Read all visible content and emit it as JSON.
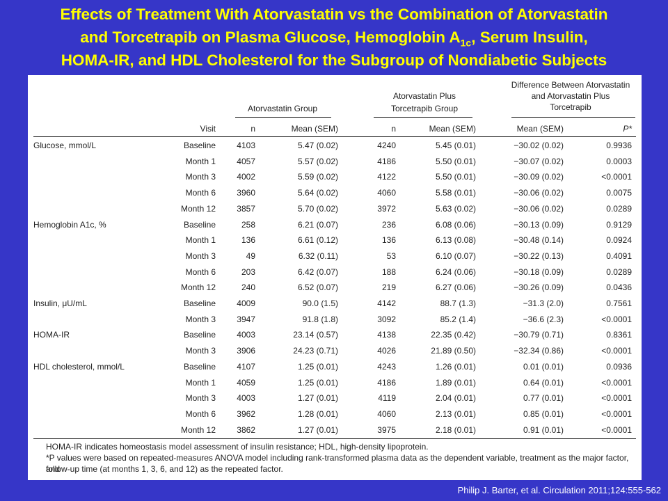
{
  "title": {
    "line1": "Effects of Treatment With Atorvastatin vs the Combination of Atorvastatin",
    "line2_pre": "and Torcetrapib on Plasma Glucose, Hemoglobin A",
    "line2_sub": "1c",
    "line2_post": ", Serum Insulin,",
    "line3": "HOMA-IR, and HDL Cholesterol for the Subgroup of Nondiabetic Subjects"
  },
  "table": {
    "group_headers": {
      "atorvastatin": "Atorvastatin Group",
      "combo_line1": "Atorvastatin Plus",
      "combo_line2": "Torcetrapib Group",
      "diff_line1": "Difference Between Atorvastatin",
      "diff_line2": "and Atorvastatin Plus",
      "diff_line3": "Torcetrapib"
    },
    "columns": {
      "visit": "Visit",
      "n1": "n",
      "mean1": "Mean (SEM)",
      "n2": "n",
      "mean2": "Mean (SEM)",
      "mean_diff": "Mean (SEM)",
      "p": "P*"
    },
    "rows": [
      {
        "label": "Glucose, mmol/L",
        "visit": "Baseline",
        "n1": "4103",
        "m1": "5.47 (0.02)",
        "n2": "4240",
        "m2": "5.45 (0.01)",
        "md": "−30.02 (0.02)",
        "p": "0.9936"
      },
      {
        "label": "",
        "visit": "Month 1",
        "n1": "4057",
        "m1": "5.57 (0.02)",
        "n2": "4186",
        "m2": "5.50 (0.01)",
        "md": "−30.07 (0.02)",
        "p": "0.0003"
      },
      {
        "label": "",
        "visit": "Month 3",
        "n1": "4002",
        "m1": "5.59 (0.02)",
        "n2": "4122",
        "m2": "5.50 (0.01)",
        "md": "−30.09 (0.02)",
        "p": "<0.0001"
      },
      {
        "label": "",
        "visit": "Month 6",
        "n1": "3960",
        "m1": "5.64 (0.02)",
        "n2": "4060",
        "m2": "5.58 (0.01)",
        "md": "−30.06 (0.02)",
        "p": "0.0075"
      },
      {
        "label": "",
        "visit": "Month 12",
        "n1": "3857",
        "m1": "5.70 (0.02)",
        "n2": "3972",
        "m2": "5.63 (0.02)",
        "md": "−30.06 (0.02)",
        "p": "0.0289"
      },
      {
        "label": "Hemoglobin A1c, %",
        "visit": "Baseline",
        "n1": "258",
        "m1": "6.21 (0.07)",
        "n2": "236",
        "m2": "6.08 (0.06)",
        "md": "−30.13 (0.09)",
        "p": "0.9129"
      },
      {
        "label": "",
        "visit": "Month 1",
        "n1": "136",
        "m1": "6.61 (0.12)",
        "n2": "136",
        "m2": "6.13 (0.08)",
        "md": "−30.48 (0.14)",
        "p": "0.0924"
      },
      {
        "label": "",
        "visit": "Month 3",
        "n1": "49",
        "m1": "6.32 (0.11)",
        "n2": "53",
        "m2": "6.10 (0.07)",
        "md": "−30.22 (0.13)",
        "p": "0.4091"
      },
      {
        "label": "",
        "visit": "Month 6",
        "n1": "203",
        "m1": "6.42 (0.07)",
        "n2": "188",
        "m2": "6.24 (0.06)",
        "md": "−30.18 (0.09)",
        "p": "0.0289"
      },
      {
        "label": "",
        "visit": "Month 12",
        "n1": "240",
        "m1": "6.52 (0.07)",
        "n2": "219",
        "m2": "6.27 (0.06)",
        "md": "−30.26 (0.09)",
        "p": "0.0436"
      },
      {
        "label": "Insulin, μU/mL",
        "visit": "Baseline",
        "n1": "4009",
        "m1": "90.0 (1.5)",
        "n2": "4142",
        "m2": "88.7 (1.3)",
        "md": "−31.3 (2.0)",
        "p": "0.7561"
      },
      {
        "label": "",
        "visit": "Month 3",
        "n1": "3947",
        "m1": "91.8 (1.8)",
        "n2": "3092",
        "m2": "85.2 (1.4)",
        "md": "−36.6 (2.3)",
        "p": "<0.0001"
      },
      {
        "label": "HOMA-IR",
        "visit": "Baseline",
        "n1": "4003",
        "m1": "23.14 (0.57)",
        "n2": "4138",
        "m2": "22.35 (0.42)",
        "md": "−30.79 (0.71)",
        "p": "0.8361"
      },
      {
        "label": "",
        "visit": "Month 3",
        "n1": "3906",
        "m1": "24.23 (0.71)",
        "n2": "4026",
        "m2": "21.89 (0.50)",
        "md": "−32.34 (0.86)",
        "p": "<0.0001"
      },
      {
        "label": "HDL cholesterol, mmol/L",
        "visit": "Baseline",
        "n1": "4107",
        "m1": "1.25 (0.01)",
        "n2": "4243",
        "m2": "1.26 (0.01)",
        "md": "0.01 (0.01)",
        "p": "0.0936"
      },
      {
        "label": "",
        "visit": "Month 1",
        "n1": "4059",
        "m1": "1.25 (0.01)",
        "n2": "4186",
        "m2": "1.89 (0.01)",
        "md": "0.64 (0.01)",
        "p": "<0.0001"
      },
      {
        "label": "",
        "visit": "Month 3",
        "n1": "4003",
        "m1": "1.27 (0.01)",
        "n2": "4119",
        "m2": "2.04 (0.01)",
        "md": "0.77 (0.01)",
        "p": "<0.0001"
      },
      {
        "label": "",
        "visit": "Month 6",
        "n1": "3962",
        "m1": "1.28 (0.01)",
        "n2": "4060",
        "m2": "2.13 (0.01)",
        "md": "0.85 (0.01)",
        "p": "<0.0001"
      },
      {
        "label": "",
        "visit": "Month 12",
        "n1": "3862",
        "m1": "1.27 (0.01)",
        "n2": "3975",
        "m2": "2.18 (0.01)",
        "md": "0.91 (0.01)",
        "p": "<0.0001"
      }
    ]
  },
  "footnotes": {
    "line1": "HOMA-IR indicates homeostasis model assessment of insulin resistance; HDL, high-density lipoprotein.",
    "line2": "*P values were based on repeated-measures ANOVA model including rank-transformed plasma data as the dependent variable, treatment as the major factor, and",
    "line3": "follow-up time (at months 1, 3, 6, and 12) as the repeated factor."
  },
  "citation": "Philip J. Barter, et al. Circulation 2011;124:555-562"
}
